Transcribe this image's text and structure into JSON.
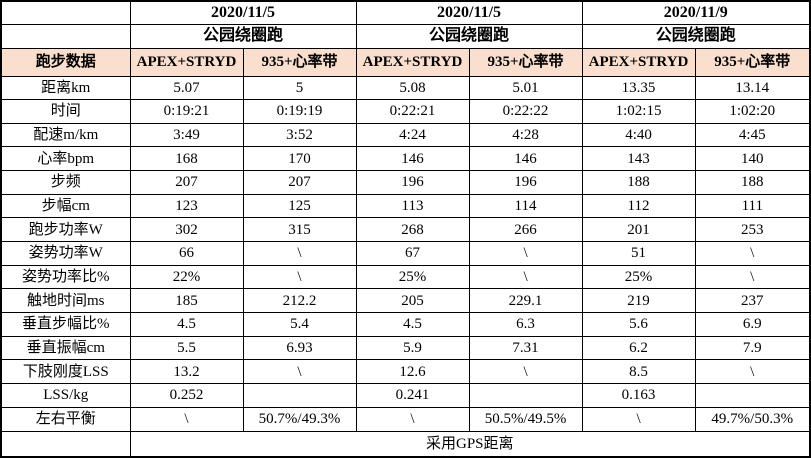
{
  "table": {
    "header_bg": "#FBDFCE",
    "corner_label": "",
    "groups": [
      {
        "date": "2020/11/5",
        "activity": "公园绕圈跑"
      },
      {
        "date": "2020/11/5",
        "activity": "公园绕圈跑"
      },
      {
        "date": "2020/11/9",
        "activity": "公园绕圈跑"
      }
    ],
    "header_label": "跑步数据",
    "device_headers": [
      "APEX+STRYD",
      "935+心率带",
      "APEX+STRYD",
      "935+心率带",
      "APEX+STRYD",
      "935+心率带"
    ],
    "rows": [
      {
        "label": "距离km",
        "values": [
          "5.07",
          "5",
          "5.08",
          "5.01",
          "13.35",
          "13.14"
        ]
      },
      {
        "label": "时间",
        "values": [
          "0:19:21",
          "0:19:19",
          "0:22:21",
          "0:22:22",
          "1:02:15",
          "1:02:20"
        ]
      },
      {
        "label": "配速m/km",
        "values": [
          "3:49",
          "3:52",
          "4:24",
          "4:28",
          "4:40",
          "4:45"
        ]
      },
      {
        "label": "心率bpm",
        "values": [
          "168",
          "170",
          "146",
          "146",
          "143",
          "140"
        ]
      },
      {
        "label": "步频",
        "values": [
          "207",
          "207",
          "196",
          "196",
          "188",
          "188"
        ]
      },
      {
        "label": "步幅cm",
        "values": [
          "123",
          "125",
          "113",
          "114",
          "112",
          "111"
        ]
      },
      {
        "label": "跑步功率W",
        "values": [
          "302",
          "315",
          "268",
          "266",
          "201",
          "253"
        ]
      },
      {
        "label": "姿势功率W",
        "values": [
          "66",
          "\\",
          "67",
          "\\",
          "51",
          "\\"
        ]
      },
      {
        "label": "姿势功率比%",
        "values": [
          "22%",
          "\\",
          "25%",
          "\\",
          "25%",
          "\\"
        ]
      },
      {
        "label": "触地时间ms",
        "values": [
          "185",
          "212.2",
          "205",
          "229.1",
          "219",
          "237"
        ]
      },
      {
        "label": "垂直步幅比%",
        "values": [
          "4.5",
          "5.4",
          "4.5",
          "6.3",
          "5.6",
          "6.9"
        ]
      },
      {
        "label": "垂直振幅cm",
        "values": [
          "5.5",
          "6.93",
          "5.9",
          "7.31",
          "6.2",
          "7.9"
        ]
      },
      {
        "label": "下肢刚度LSS",
        "values": [
          "13.2",
          "\\",
          "12.6",
          "\\",
          "8.5",
          "\\"
        ]
      },
      {
        "label": "LSS/kg",
        "values": [
          "0.252",
          "",
          "0.241",
          "",
          "0.163",
          ""
        ]
      },
      {
        "label": "左右平衡",
        "values": [
          "\\",
          "50.7%/49.3%",
          "\\",
          "50.5%/49.5%",
          "\\",
          "49.7%/50.3%"
        ]
      }
    ],
    "footer_note": "采用GPS距离"
  }
}
